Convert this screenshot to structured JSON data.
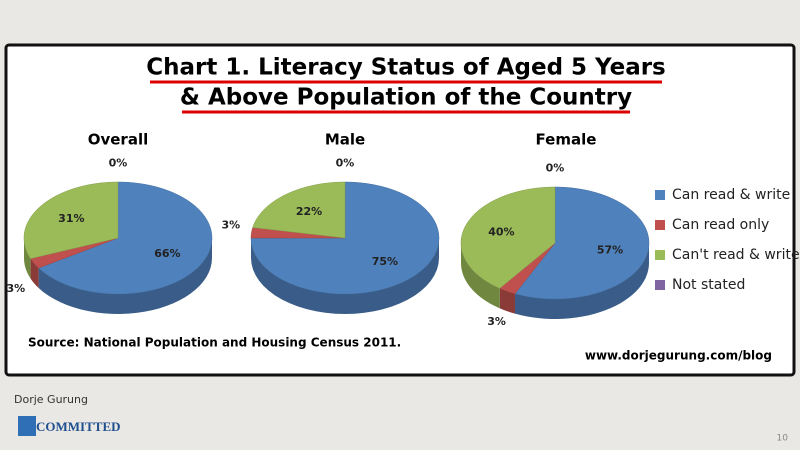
{
  "chart_data": {
    "type": "pie",
    "title": [
      "Chart 1. Literacy Status of Aged 5 Years",
      "& Above Population of the Country"
    ],
    "categories": [
      "Can read & write",
      "Can read only",
      "Can't read & write",
      "Not stated"
    ],
    "colors": [
      "#4f81bd",
      "#c0504d",
      "#9bbb59",
      "#8064a2"
    ],
    "series": [
      {
        "name": "Overall",
        "values": [
          66,
          3,
          31,
          0
        ],
        "value_labels": [
          "66%",
          "3%",
          "31%",
          "0%"
        ]
      },
      {
        "name": "Male",
        "values": [
          75,
          3,
          22,
          0
        ],
        "value_labels": [
          "75%",
          "3%",
          "22%",
          "0%"
        ]
      },
      {
        "name": "Female",
        "values": [
          57,
          3,
          40,
          0
        ],
        "value_labels": [
          "57%",
          "3%",
          "40%",
          "0%"
        ]
      }
    ],
    "source": "Source: National Population and Housing Census 2011.",
    "url": "www.dorjegurung.com/blog"
  },
  "footer": {
    "author": "Dorje Gurung",
    "logo": "COMMITTED",
    "page": "10"
  }
}
